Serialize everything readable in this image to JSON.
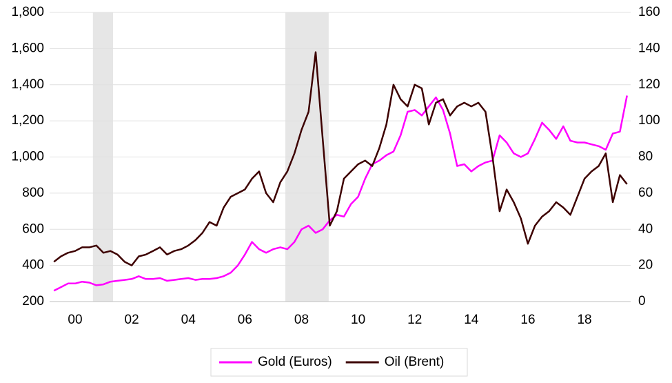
{
  "chart_data": {
    "type": "line",
    "x": [
      1999.25,
      1999.5,
      1999.75,
      2000,
      2000.25,
      2000.5,
      2000.75,
      2001,
      2001.25,
      2001.5,
      2001.75,
      2002,
      2002.25,
      2002.5,
      2002.75,
      2003,
      2003.25,
      2003.5,
      2003.75,
      2004,
      2004.25,
      2004.5,
      2004.75,
      2005,
      2005.25,
      2005.5,
      2005.75,
      2006,
      2006.25,
      2006.5,
      2006.75,
      2007,
      2007.25,
      2007.5,
      2007.75,
      2008,
      2008.25,
      2008.5,
      2008.75,
      2009,
      2009.25,
      2009.5,
      2009.75,
      2010,
      2010.25,
      2010.5,
      2010.75,
      2011,
      2011.25,
      2011.5,
      2011.75,
      2012,
      2012.25,
      2012.5,
      2012.75,
      2013,
      2013.25,
      2013.5,
      2013.75,
      2014,
      2014.25,
      2014.5,
      2014.75,
      2015,
      2015.25,
      2015.5,
      2015.75,
      2016,
      2016.25,
      2016.5,
      2016.75,
      2017,
      2017.25,
      2017.5,
      2017.75,
      2018,
      2018.25,
      2018.5,
      2018.75,
      2019,
      2019.25,
      2019.5
    ],
    "series": [
      {
        "name": "Gold (Euros)",
        "color": "#ff00ff",
        "values": [
          260,
          280,
          300,
          300,
          310,
          305,
          290,
          295,
          310,
          315,
          320,
          325,
          340,
          325,
          325,
          330,
          315,
          320,
          325,
          330,
          320,
          325,
          325,
          330,
          340,
          360,
          400,
          460,
          530,
          490,
          470,
          490,
          500,
          490,
          530,
          600,
          620,
          580,
          600,
          650,
          680,
          670,
          740,
          780,
          880,
          960,
          980,
          1010,
          1030,
          1120,
          1250,
          1260,
          1230,
          1280,
          1330,
          1260,
          1130,
          950,
          960,
          920,
          950,
          970,
          980,
          1120,
          1080,
          1020,
          1000,
          1020,
          1100,
          1190,
          1150,
          1100,
          1170,
          1090,
          1080,
          1080,
          1070,
          1060,
          1040,
          1130,
          1140,
          1340
        ]
      },
      {
        "name": "Oil (Brent)",
        "color": "#3d0000",
        "axis": "y2",
        "values": [
          22,
          25,
          27,
          28,
          30,
          30,
          31,
          27,
          28,
          26,
          22,
          20,
          25,
          26,
          28,
          30,
          26,
          28,
          29,
          31,
          34,
          38,
          44,
          42,
          52,
          58,
          60,
          62,
          68,
          72,
          60,
          55,
          66,
          72,
          82,
          95,
          105,
          138,
          90,
          42,
          50,
          68,
          72,
          76,
          78,
          75,
          85,
          98,
          120,
          112,
          108,
          120,
          118,
          98,
          110,
          112,
          103,
          108,
          110,
          108,
          110,
          105,
          80,
          50,
          62,
          55,
          46,
          32,
          42,
          47,
          50,
          55,
          52,
          48,
          58,
          68,
          72,
          75,
          82,
          55,
          70,
          65
        ]
      }
    ],
    "shaded": [
      [
        2000.63,
        2001.34
      ],
      [
        2007.43,
        2008.96
      ]
    ],
    "xlim": [
      1999.1,
      2019.63
    ],
    "xticks": [
      {
        "value": 2000,
        "label": "00"
      },
      {
        "value": 2002,
        "label": "02"
      },
      {
        "value": 2004,
        "label": "04"
      },
      {
        "value": 2006,
        "label": "06"
      },
      {
        "value": 2008,
        "label": "08"
      },
      {
        "value": 2010,
        "label": "10"
      },
      {
        "value": 2012,
        "label": "12"
      },
      {
        "value": 2014,
        "label": "14"
      },
      {
        "value": 2016,
        "label": "16"
      },
      {
        "value": 2018,
        "label": "18"
      }
    ],
    "ylim": [
      200,
      1800
    ],
    "yticks": [
      200,
      400,
      600,
      800,
      {
        "value": 1000,
        "label": "1,000"
      },
      {
        "value": 1200,
        "label": "1,200"
      },
      {
        "value": 1400,
        "label": "1,400"
      },
      {
        "value": 1600,
        "label": "1,600"
      },
      {
        "value": 1800,
        "label": "1,800"
      }
    ],
    "y2lim": [
      0,
      160
    ],
    "y2ticks": [
      0,
      20,
      40,
      60,
      80,
      100,
      120,
      140,
      160
    ],
    "grid": true,
    "legend": "bottom"
  }
}
